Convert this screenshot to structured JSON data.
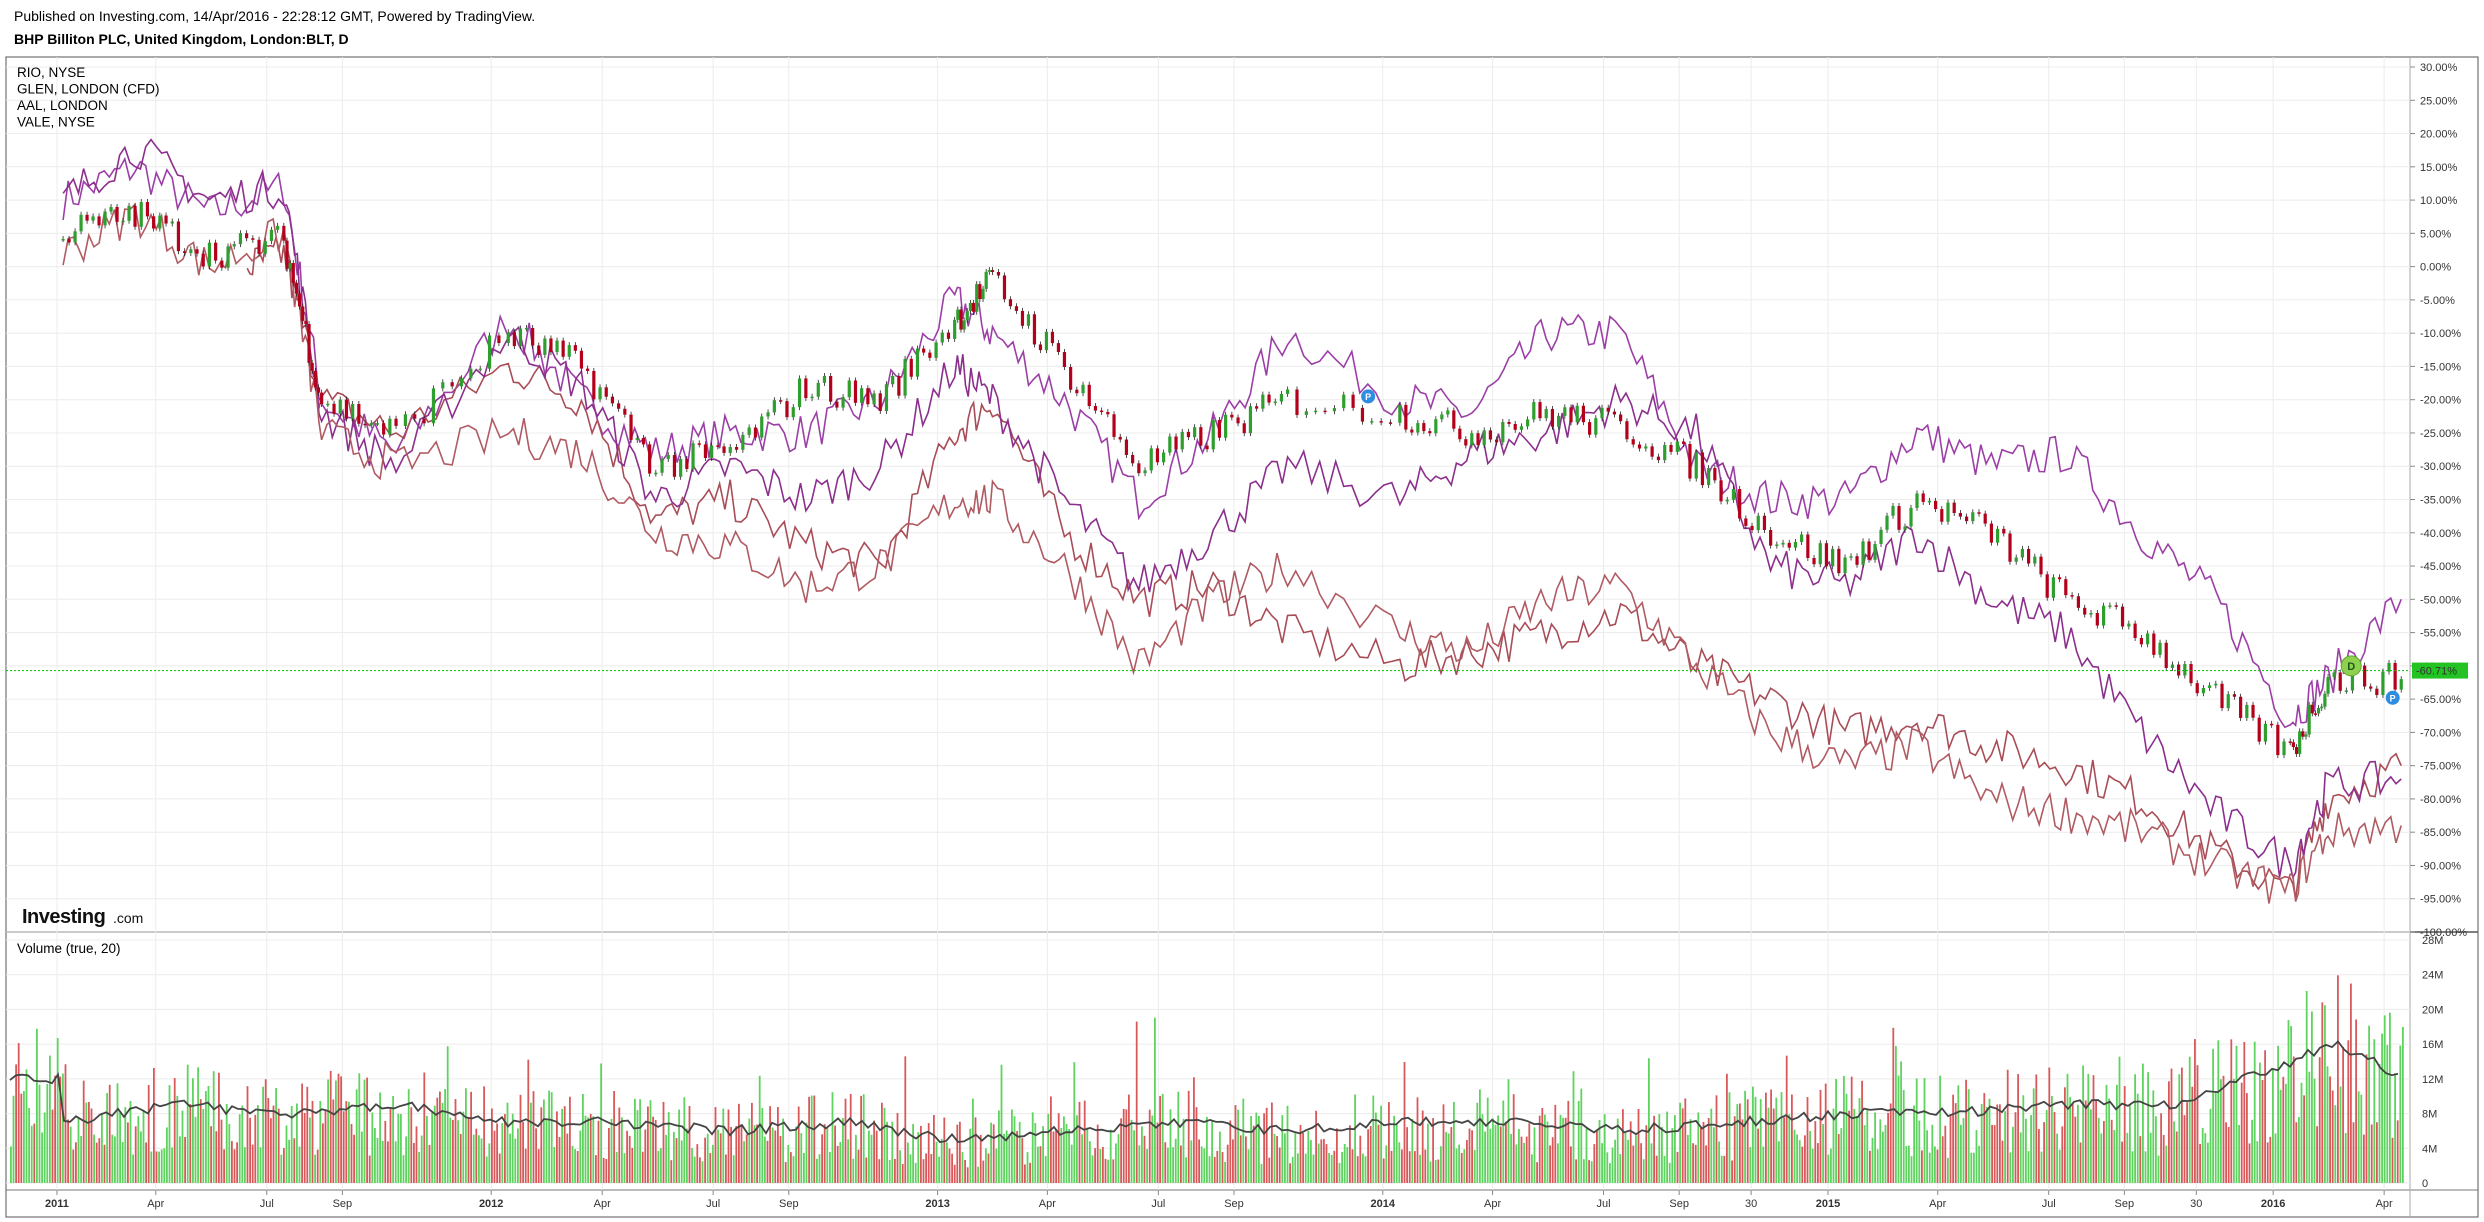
{
  "header": {
    "published": "Published on Investing.com, 14/Apr/2016 - 22:28:12 GMT, Powered by TradingView.",
    "symbol": "BHP Billiton PLC, United Kingdom, London:BLT, D"
  },
  "logo": {
    "brand": "Investing",
    "suffix": ".com"
  },
  "colors": {
    "up": "#2e9e2e",
    "down": "#b3001b",
    "rio": "#9b3fa6",
    "glen": "#a84d57",
    "aal": "#8c2f8c",
    "vale": "#b05a62",
    "current_line": "#00c000",
    "volume_up": "#5fd35f",
    "volume_down": "#d9595b",
    "volume_ma": "#444444"
  },
  "markers": {
    "dividend": "D",
    "p_label": "P",
    "current_value": "-60.71%"
  },
  "chart_data": [
    {
      "type": "line",
      "title": "BHP Billiton PLC, United Kingdom, London:BLT, D",
      "ylabel_unit": "%",
      "ylim": [
        -100,
        30
      ],
      "x_start": "2011-01-01",
      "x_end": "2016-04-14",
      "x_ticks": [
        "2011",
        "Apr",
        "Jul",
        "Sep",
        "2012",
        "Apr",
        "Jul",
        "Sep",
        "2013",
        "Apr",
        "Jul",
        "Sep",
        "2014",
        "Apr",
        "Jul",
        "Sep",
        "30",
        "2015",
        "Apr",
        "Jul",
        "Sep",
        "30",
        "2016",
        "Apr"
      ],
      "y_ticks": [
        "30.00%",
        "25.00%",
        "20.00%",
        "15.00%",
        "10.00%",
        "5.00%",
        "0.00%",
        "-5.00%",
        "-10.00%",
        "-15.00%",
        "-20.00%",
        "-25.00%",
        "-30.00%",
        "-35.00%",
        "-40.00%",
        "-45.00%",
        "-50.00%",
        "-55.00%",
        "-60.00%",
        "-65.00%",
        "-70.00%",
        "-75.00%",
        "-80.00%",
        "-85.00%",
        "-90.00%",
        "-95.00%",
        "-100.00%"
      ],
      "current_value": -60.71,
      "legend": [
        "RIO, NYSE",
        "GLEN, LONDON (CFD)",
        "AAL, LONDON",
        "VALE, NYSE"
      ],
      "series": [
        {
          "name": "BLT",
          "style": "candles",
          "x": [
            "2011-01",
            "2011-03",
            "2011-05",
            "2011-07",
            "2011-08",
            "2011-10",
            "2012-01",
            "2012-03",
            "2012-05",
            "2012-07",
            "2012-09",
            "2012-11",
            "2013-01",
            "2013-02",
            "2013-04",
            "2013-06",
            "2013-08",
            "2013-10",
            "2014-01",
            "2014-03",
            "2014-05",
            "2014-07",
            "2014-09",
            "2014-11",
            "2015-01",
            "2015-03",
            "2015-05",
            "2015-07",
            "2015-09",
            "2015-11",
            "2016-01",
            "2016-02",
            "2016-04"
          ],
          "y": [
            5,
            8,
            2,
            4,
            -20,
            -25,
            -10,
            -15,
            -30,
            -28,
            -18,
            -20,
            -8,
            -2,
            -15,
            -30,
            -25,
            -20,
            -22,
            -25,
            -22,
            -24,
            -30,
            -40,
            -45,
            -35,
            -40,
            -50,
            -55,
            -65,
            -73,
            -62,
            -62
          ]
        },
        {
          "name": "RIO, NYSE",
          "x": [
            "2011-01",
            "2011-03",
            "2011-05",
            "2011-07",
            "2011-08",
            "2011-10",
            "2012-01",
            "2012-03",
            "2012-05",
            "2012-07",
            "2012-09",
            "2012-11",
            "2013-01",
            "2013-02",
            "2013-04",
            "2013-06",
            "2013-08",
            "2013-10",
            "2014-01",
            "2014-03",
            "2014-05",
            "2014-07",
            "2014-09",
            "2014-11",
            "2015-01",
            "2015-03",
            "2015-05",
            "2015-07",
            "2015-09",
            "2015-11",
            "2016-01",
            "2016-02",
            "2016-04"
          ],
          "y": [
            10,
            15,
            8,
            12,
            -20,
            -28,
            -8,
            -20,
            -28,
            -25,
            -25,
            -20,
            -5,
            -10,
            -20,
            -35,
            -25,
            -10,
            -20,
            -22,
            -10,
            -10,
            -30,
            -35,
            -35,
            -25,
            -30,
            -28,
            -40,
            -50,
            -68,
            -62,
            -50
          ]
        },
        {
          "name": "GLEN, LONDON (CFD)",
          "x": [
            "2011-06",
            "2011-07",
            "2011-08",
            "2011-10",
            "2012-01",
            "2012-03",
            "2012-05",
            "2012-07",
            "2012-09",
            "2012-11",
            "2013-01",
            "2013-02",
            "2013-04",
            "2013-06",
            "2013-08",
            "2013-10",
            "2014-01",
            "2014-03",
            "2014-05",
            "2014-07",
            "2014-09",
            "2014-11",
            "2015-01",
            "2015-03",
            "2015-05",
            "2015-07",
            "2015-09",
            "2015-11",
            "2016-01",
            "2016-02",
            "2016-04"
          ],
          "y": [
            0,
            2,
            -20,
            -25,
            -15,
            -20,
            -38,
            -35,
            -42,
            -45,
            -25,
            -20,
            -40,
            -50,
            -48,
            -55,
            -60,
            -58,
            -55,
            -52,
            -60,
            -65,
            -70,
            -68,
            -72,
            -75,
            -80,
            -88,
            -94,
            -80,
            -75
          ]
        },
        {
          "name": "AAL, LONDON",
          "x": [
            "2011-01",
            "2011-03",
            "2011-05",
            "2011-07",
            "2011-08",
            "2011-10",
            "2012-01",
            "2012-03",
            "2012-05",
            "2012-07",
            "2012-09",
            "2012-11",
            "2013-01",
            "2013-02",
            "2013-04",
            "2013-06",
            "2013-08",
            "2013-10",
            "2014-01",
            "2014-03",
            "2014-05",
            "2014-07",
            "2014-09",
            "2014-11",
            "2015-01",
            "2015-03",
            "2015-05",
            "2015-07",
            "2015-09",
            "2015-11",
            "2016-01",
            "2016-02",
            "2016-04"
          ],
          "y": [
            10,
            18,
            10,
            12,
            -22,
            -30,
            -10,
            -18,
            -35,
            -30,
            -35,
            -30,
            -15,
            -20,
            -35,
            -48,
            -40,
            -30,
            -35,
            -28,
            -25,
            -20,
            -25,
            -45,
            -48,
            -40,
            -50,
            -55,
            -70,
            -82,
            -90,
            -78,
            -77
          ]
        },
        {
          "name": "VALE, NYSE",
          "x": [
            "2011-01",
            "2011-03",
            "2011-05",
            "2011-07",
            "2011-08",
            "2011-10",
            "2012-01",
            "2012-03",
            "2012-05",
            "2012-07",
            "2012-09",
            "2012-11",
            "2013-01",
            "2013-02",
            "2013-04",
            "2013-06",
            "2013-08",
            "2013-10",
            "2014-01",
            "2014-03",
            "2014-05",
            "2014-07",
            "2014-09",
            "2014-11",
            "2015-01",
            "2015-03",
            "2015-05",
            "2015-07",
            "2015-09",
            "2015-11",
            "2016-01",
            "2016-02",
            "2016-04"
          ],
          "y": [
            2,
            8,
            0,
            5,
            -25,
            -30,
            -25,
            -28,
            -40,
            -42,
            -48,
            -45,
            -35,
            -35,
            -45,
            -60,
            -50,
            -45,
            -55,
            -58,
            -50,
            -48,
            -60,
            -70,
            -75,
            -72,
            -80,
            -82,
            -85,
            -90,
            -94,
            -85,
            -84
          ]
        }
      ]
    },
    {
      "type": "bar",
      "title": "Volume (true, 20)",
      "ylim": [
        0,
        28
      ],
      "y_unit": "M",
      "y_ticks": [
        "28M",
        "24M",
        "20M",
        "16M",
        "12M",
        "8M",
        "4M",
        "0"
      ],
      "x_start": "2011-01-01",
      "x_end": "2016-04-14",
      "ma_period": 20,
      "ma": {
        "x": [
          "2011-01",
          "2011-04",
          "2011-07",
          "2011-10",
          "2012-01",
          "2012-04",
          "2012-07",
          "2012-10",
          "2013-01",
          "2013-04",
          "2013-07",
          "2013-10",
          "2014-01",
          "2014-04",
          "2014-07",
          "2014-10",
          "2015-01",
          "2015-04",
          "2015-07",
          "2015-10",
          "2016-01",
          "2016-02",
          "2016-03",
          "2016-04"
        ],
        "y": [
          7,
          9,
          8,
          9,
          7,
          7,
          6,
          7,
          5,
          6,
          7,
          6,
          7,
          7,
          6,
          7,
          8,
          8,
          9,
          9,
          14,
          16,
          15,
          12
        ]
      }
    }
  ]
}
